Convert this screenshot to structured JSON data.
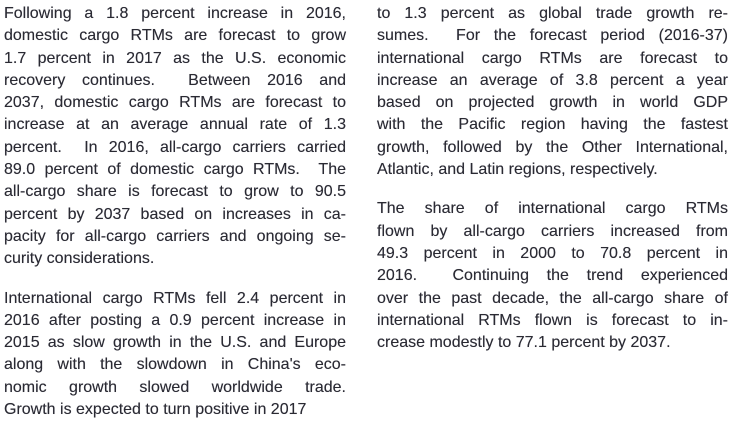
{
  "page": {
    "background": "#ffffff",
    "text_color": "#2a2a33"
  },
  "columns": [
    {
      "id": "left",
      "paragraphs": [
        {
          "lines": [
            "Following a 1.8 percent increase in 2016,",
            "domestic cargo RTMs are forecast to grow",
            "1.7 percent in 2017 as the U.S. economic",
            "recovery continues.  Between 2016 and",
            "2037, domestic cargo RTMs are forecast to",
            "increase at an average annual rate of 1.3",
            "percent.  In 2016, all-cargo carriers carried",
            "89.0 percent of domestic cargo RTMs.  The",
            "all-cargo share is forecast to grow to 90.5",
            "percent by 2037 based on increases in ca-",
            "pacity for all-cargo carriers and ongoing se-",
            "curity considerations."
          ]
        },
        {
          "lines": [
            "International cargo RTMs fell 2.4 percent in",
            "2016 after posting a 0.9 percent increase in",
            "2015 as slow growth in the U.S. and Europe",
            "along with the slowdown in China's eco-",
            "nomic growth slowed worldwide trade.",
            "Growth is expected to turn positive in 2017"
          ]
        }
      ]
    },
    {
      "id": "right",
      "paragraphs": [
        {
          "lines": [
            "to 1.3 percent as global trade growth re-",
            "sumes.  For the forecast period (2016-37)",
            "international cargo RTMs are forecast to",
            "increase an average of 3.8 percent a year",
            "based on projected growth in world GDP",
            "with the Pacific region having the fastest",
            "growth, followed by the Other International,",
            "Atlantic, and Latin regions, respectively."
          ]
        },
        {
          "lines": [
            "The share of international cargo RTMs",
            "flown by all-cargo carriers increased from",
            "49.3 percent in 2000 to 70.8 percent in",
            "2016.  Continuing the trend experienced",
            "over the past decade, the all-cargo share of",
            "international RTMs flown is forecast to in-",
            "crease modestly to 77.1 percent by 2037."
          ]
        }
      ]
    }
  ]
}
